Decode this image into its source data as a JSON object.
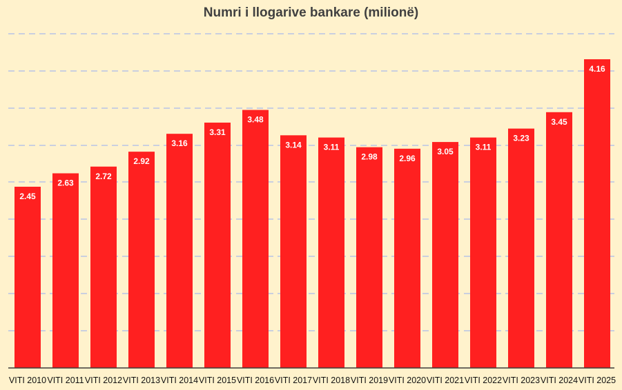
{
  "chart_data": {
    "type": "bar",
    "title": "Numri i llogarive bankare (milionë)",
    "xlabel": "",
    "ylabel": "",
    "categories": [
      "VITI 2010",
      "VITI 2011",
      "VITI 2012",
      "VITI 2013",
      "VITI 2014",
      "VITI 2015",
      "VITI 2016",
      "VITI 2017",
      "VITI 2018",
      "VITI 2019",
      "VITI 2020",
      "VITI 2021",
      "VITI 2022",
      "VITI 2023",
      "VITI 2024",
      "VITI 2025"
    ],
    "values": [
      2.45,
      2.63,
      2.72,
      2.92,
      3.16,
      3.31,
      3.48,
      3.14,
      3.11,
      2.98,
      2.96,
      3.05,
      3.11,
      3.23,
      3.45,
      4.16
    ],
    "data_labels": [
      "2.45",
      "2.63",
      "2.72",
      "2.92",
      "3.16",
      "3.31",
      "3.48",
      "3.14",
      "3.11",
      "2.98",
      "2.96",
      "3.05",
      "3.11",
      "3.23",
      "3.45",
      "4.16"
    ],
    "grid": true,
    "legend": "none",
    "colors": {
      "bar": "#FF2020",
      "background": "#FFF2CC",
      "grid": "#C9CFE0",
      "axis": "#3A3A3A"
    }
  }
}
